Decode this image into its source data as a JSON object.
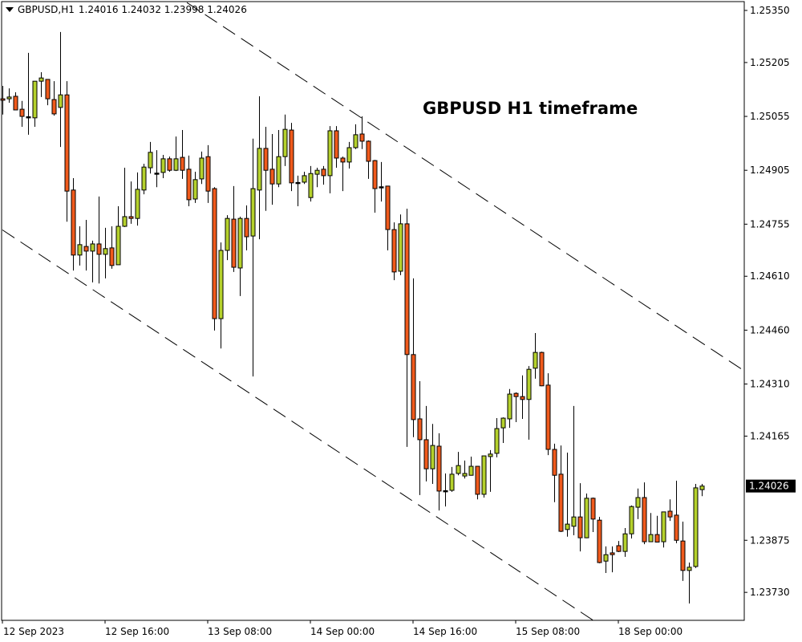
{
  "header": {
    "menu_icon": "triangle-down-icon",
    "symbol": "GBPUSD,H1",
    "ohlc": "1.24016 1.24032 1.23998 1.24026"
  },
  "annotation_title": "GBPUSD H1 timeframe",
  "colors": {
    "bull": "#b5d12c",
    "bear": "#f05a1c",
    "outline": "#000000",
    "background": "#ffffff",
    "current_price_bg": "#000000"
  },
  "chart_data": {
    "type": "candlestick",
    "symbol": "GBPUSD",
    "timeframe": "H1",
    "ylim": [
      1.23654,
      1.25395
    ],
    "grid": false,
    "y_ticks": [
      "1.25350",
      "1.25205",
      "1.25055",
      "1.24905",
      "1.24755",
      "1.24610",
      "1.24460",
      "1.24310",
      "1.24165",
      "1.23875",
      "1.23730"
    ],
    "x_ticks": [
      "12 Sep 2023",
      "12 Sep 16:00",
      "13 Sep 08:00",
      "14 Sep 00:00",
      "14 Sep 16:00",
      "15 Sep 08:00",
      "18 Sep 00:00"
    ],
    "current_price": "1.24026",
    "candles_ohlc": [
      [
        1.25104,
        1.2514,
        1.2506,
        1.251
      ],
      [
        1.25104,
        1.25133,
        1.25093,
        1.25109
      ],
      [
        1.25111,
        1.25122,
        1.25073,
        1.25073
      ],
      [
        1.25075,
        1.25098,
        1.25026,
        1.25055
      ],
      [
        1.25053,
        1.25232,
        1.25004,
        1.25052
      ],
      [
        1.25051,
        1.25153,
        1.25026,
        1.25153
      ],
      [
        1.25153,
        1.25178,
        1.25109,
        1.25162
      ],
      [
        1.25158,
        1.25158,
        1.25086,
        1.25104
      ],
      [
        1.25102,
        1.25153,
        1.25057,
        1.25062
      ],
      [
        1.2508,
        1.2529,
        1.2497,
        1.25115
      ],
      [
        1.25115,
        1.25153,
        1.24762,
        1.24847
      ],
      [
        1.2485,
        1.24883,
        1.24626,
        1.24669
      ],
      [
        1.24669,
        1.24749,
        1.2464,
        1.24698
      ],
      [
        1.24693,
        1.24767,
        1.24626,
        1.2468
      ],
      [
        1.2468,
        1.24709,
        1.24593,
        1.247
      ],
      [
        1.247,
        1.24832,
        1.2459,
        1.24671
      ],
      [
        1.24671,
        1.24745,
        1.24604,
        1.24687
      ],
      [
        1.24689,
        1.24749,
        1.24631,
        1.2464
      ],
      [
        1.24642,
        1.24805,
        1.24642,
        1.24749
      ],
      [
        1.24749,
        1.24912,
        1.24747,
        1.24776
      ],
      [
        1.24776,
        1.24874,
        1.24756,
        1.24771
      ],
      [
        1.24771,
        1.24899,
        1.24751,
        1.24852
      ],
      [
        1.2485,
        1.24923,
        1.24838,
        1.24914
      ],
      [
        1.24912,
        1.24984,
        1.24896,
        1.24955
      ],
      [
        1.24896,
        1.24961,
        1.24858,
        1.24895
      ],
      [
        1.24899,
        1.24948,
        1.24883,
        1.24937
      ],
      [
        1.24937,
        1.24943,
        1.24901,
        1.24905
      ],
      [
        1.24905,
        1.24999,
        1.24903,
        1.24937
      ],
      [
        1.24941,
        1.25017,
        1.24881,
        1.24905
      ],
      [
        1.24908,
        1.24946,
        1.24805,
        1.24823
      ],
      [
        1.24825,
        1.24901,
        1.24814,
        1.24879
      ],
      [
        1.24881,
        1.24957,
        1.24867,
        1.24939
      ],
      [
        1.24943,
        1.24975,
        1.24814,
        1.24847
      ],
      [
        1.24854,
        1.24858,
        1.24459,
        1.24492
      ],
      [
        1.24492,
        1.24704,
        1.24409,
        1.24682
      ],
      [
        1.24682,
        1.2478,
        1.24655,
        1.24771
      ],
      [
        1.24769,
        1.24861,
        1.24622,
        1.24635
      ],
      [
        1.24633,
        1.24776,
        1.24555,
        1.24771
      ],
      [
        1.24771,
        1.24807,
        1.24682,
        1.2472
      ],
      [
        1.24722,
        1.24993,
        1.24331,
        1.24854
      ],
      [
        1.2485,
        1.25111,
        1.24713,
        1.24966
      ],
      [
        1.24966,
        1.25026,
        1.24792,
        1.24905
      ],
      [
        1.24908,
        1.25006,
        1.24809,
        1.24867
      ],
      [
        1.24867,
        1.25017,
        1.24858,
        1.24943
      ],
      [
        1.24943,
        1.2506,
        1.24917,
        1.25019
      ],
      [
        1.25017,
        1.25037,
        1.24847,
        1.2487
      ],
      [
        1.2487,
        1.2489,
        1.24805,
        1.24869
      ],
      [
        1.24872,
        1.24901,
        1.24867,
        1.2489
      ],
      [
        1.24829,
        1.24917,
        1.24818,
        1.24896
      ],
      [
        1.24894,
        1.24912,
        1.24858,
        1.24905
      ],
      [
        1.24908,
        1.24917,
        1.24865,
        1.2489
      ],
      [
        1.2489,
        1.25028,
        1.24841,
        1.25015
      ],
      [
        1.25015,
        1.25028,
        1.24912,
        1.24939
      ],
      [
        1.24939,
        1.24943,
        1.24847,
        1.24928
      ],
      [
        1.24928,
        1.24984,
        1.2491,
        1.24968
      ],
      [
        1.24968,
        1.25033,
        1.24964,
        1.25004
      ],
      [
        1.25006,
        1.25055,
        1.24964,
        1.24986
      ],
      [
        1.24986,
        1.24988,
        1.24881,
        1.2493
      ],
      [
        1.24932,
        1.24934,
        1.24787,
        1.24854
      ],
      [
        1.24858,
        1.24928,
        1.24818,
        1.24857
      ],
      [
        1.24861,
        1.24862,
        1.24682,
        1.2474
      ],
      [
        1.2474,
        1.2476,
        1.24599,
        1.24622
      ],
      [
        1.24624,
        1.24782,
        1.24613,
        1.24756
      ],
      [
        1.24756,
        1.24798,
        1.24135,
        1.24392
      ],
      [
        1.24392,
        1.24604,
        1.24162,
        1.24211
      ],
      [
        1.24213,
        1.24318,
        1.24001,
        1.24155
      ],
      [
        1.24155,
        1.24249,
        1.24039,
        1.24074
      ],
      [
        1.24074,
        1.24199,
        1.24032,
        1.24139
      ],
      [
        1.24137,
        1.24173,
        1.23958,
        1.24012
      ],
      [
        1.24012,
        1.24061,
        1.23969,
        1.24011
      ],
      [
        1.24014,
        1.24079,
        1.2401,
        1.24059
      ],
      [
        1.24061,
        1.24121,
        1.24056,
        1.24083
      ],
      [
        1.24054,
        1.24097,
        1.24047,
        1.24061
      ],
      [
        1.24056,
        1.24108,
        1.24055,
        1.24081
      ],
      [
        1.24081,
        1.24082,
        1.23989,
        1.24003
      ],
      [
        1.24003,
        1.2411,
        1.23994,
        1.2411
      ],
      [
        1.24108,
        1.24126,
        1.2401,
        1.24115
      ],
      [
        1.24117,
        1.24215,
        1.24106,
        1.24186
      ],
      [
        1.24188,
        1.24217,
        1.24146,
        1.24215
      ],
      [
        1.24213,
        1.24296,
        1.24188,
        1.24282
      ],
      [
        1.24284,
        1.24287,
        1.24204,
        1.24275
      ],
      [
        1.24275,
        1.24334,
        1.24213,
        1.24267
      ],
      [
        1.24267,
        1.2436,
        1.24155,
        1.24351
      ],
      [
        1.24354,
        1.24452,
        1.24325,
        1.24398
      ],
      [
        1.24398,
        1.244,
        1.24304,
        1.24305
      ],
      [
        1.24307,
        1.2434,
        1.24112,
        1.24128
      ],
      [
        1.24128,
        1.24144,
        1.23981,
        1.24056
      ],
      [
        1.24059,
        1.24139,
        1.23898,
        1.239
      ],
      [
        1.23905,
        1.24119,
        1.23885,
        1.2392
      ],
      [
        1.23914,
        1.24249,
        1.23889,
        1.2394
      ],
      [
        1.2394,
        1.24034,
        1.23844,
        1.23882
      ],
      [
        1.23882,
        1.24005,
        1.23881,
        1.23992
      ],
      [
        1.23992,
        1.23994,
        1.23898,
        1.23934
      ],
      [
        1.23931,
        1.2394,
        1.23811,
        1.23813
      ],
      [
        1.23817,
        1.23858,
        1.23784,
        1.23835
      ],
      [
        1.2384,
        1.23858,
        1.23786,
        1.23835
      ],
      [
        1.2386,
        1.23873,
        1.23842,
        1.23844
      ],
      [
        1.23844,
        1.23909,
        1.23829,
        1.23893
      ],
      [
        1.23893,
        1.23972,
        1.2388,
        1.23969
      ],
      [
        1.23967,
        1.24019,
        1.23934,
        1.23994
      ],
      [
        1.23994,
        1.24036,
        1.23864,
        1.23871
      ],
      [
        1.23871,
        1.23951,
        1.2387,
        1.23891
      ],
      [
        1.23891,
        1.23943,
        1.23871,
        1.2387
      ],
      [
        1.23871,
        1.23954,
        1.23855,
        1.23954
      ],
      [
        1.23956,
        1.23989,
        1.23929,
        1.2394
      ],
      [
        1.23945,
        1.24041,
        1.23867,
        1.23875
      ],
      [
        1.23873,
        1.23927,
        1.23762,
        1.23791
      ],
      [
        1.23791,
        1.23813,
        1.23699,
        1.238
      ],
      [
        1.23802,
        1.24032,
        1.23798,
        1.24021
      ],
      [
        1.24016,
        1.24032,
        1.23998,
        1.24026
      ]
    ],
    "trendlines": [
      {
        "style": "dashed",
        "from": {
          "time": "13 Sep 04:45",
          "price": 1.25372
        },
        "to": {
          "time": "18 Sep 19:15",
          "price": 1.24351
        }
      },
      {
        "style": "dashed",
        "from": {
          "time": "12 Sep 00:00",
          "price": 1.24739
        },
        "to": {
          "time": "15 Sep 20:06",
          "price": 1.23652
        }
      }
    ]
  }
}
